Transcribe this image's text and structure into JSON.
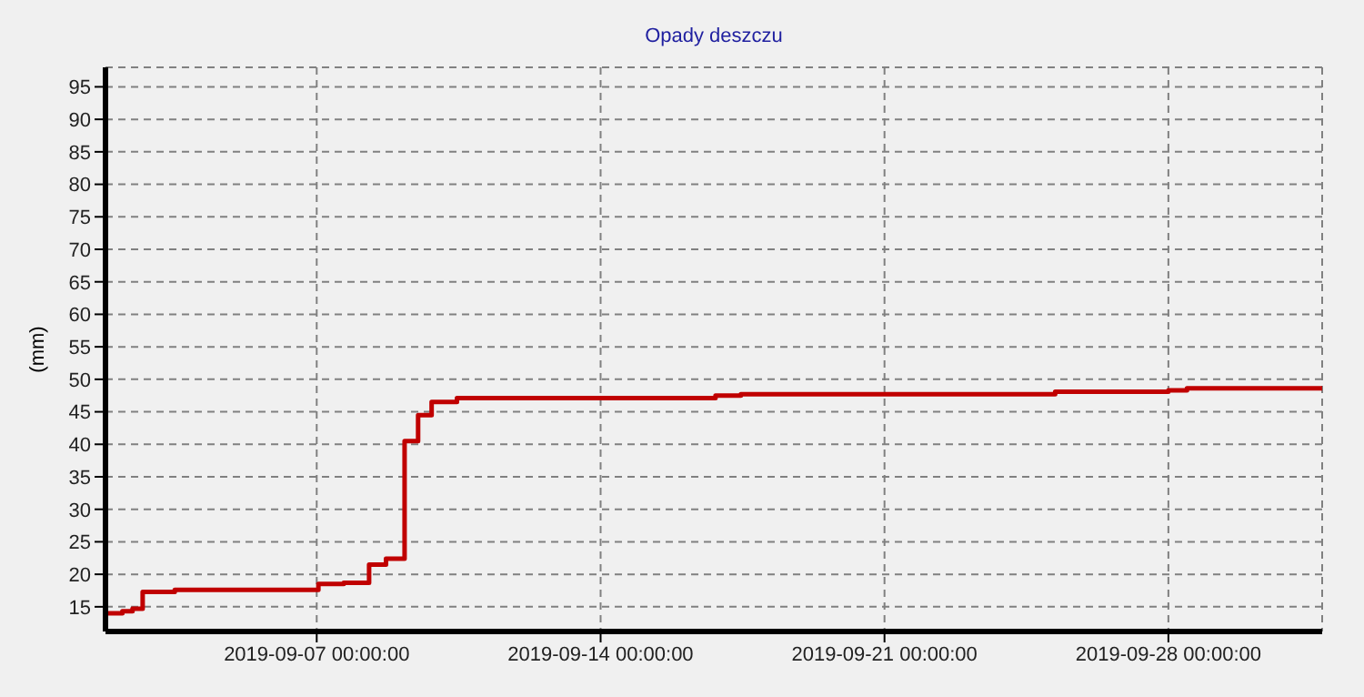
{
  "chart_data": {
    "type": "step",
    "title": "Opady deszczu",
    "ylabel": "(mm)",
    "x": [
      "2019-09-01T19:00",
      "2019-09-02T05:00",
      "2019-09-02T11:00",
      "2019-09-02T17:00",
      "2019-09-03T12:00",
      "2019-09-07T01:00",
      "2019-09-07T16:00",
      "2019-09-08T07:00",
      "2019-09-08T17:00",
      "2019-09-09T04:00",
      "2019-09-09T12:00",
      "2019-09-09T20:00",
      "2019-09-10T11:00",
      "2019-09-16T20:00",
      "2019-09-17T11:00",
      "2019-09-25T05:00",
      "2019-09-28T00:00",
      "2019-09-28T11:00",
      "2019-10-01T19:00"
    ],
    "series": [
      {
        "color": "#c00000",
        "values": [
          14.0,
          14.3,
          14.7,
          17.3,
          17.6,
          18.5,
          18.7,
          21.5,
          22.4,
          40.5,
          44.5,
          46.5,
          47.1,
          47.5,
          47.7,
          48.1,
          48.3,
          48.6,
          48.6
        ]
      }
    ],
    "xlim": [
      "2019-09-01T19:00",
      "2019-10-01T19:00"
    ],
    "xticks": [
      {
        "value": "2019-09-07T00:00",
        "label": "2019-09-07 00:00:00"
      },
      {
        "value": "2019-09-14T00:00",
        "label": "2019-09-14 00:00:00"
      },
      {
        "value": "2019-09-21T00:00",
        "label": "2019-09-21 00:00:00"
      },
      {
        "value": "2019-09-28T00:00",
        "label": "2019-09-28 00:00:00"
      }
    ],
    "ylim": [
      11.2,
      98
    ],
    "yticks": [
      15,
      20,
      25,
      30,
      35,
      40,
      45,
      50,
      55,
      60,
      65,
      70,
      75,
      80,
      85,
      90,
      95
    ],
    "grid": true,
    "legend": false,
    "marker": "none",
    "line_style": "solid"
  }
}
